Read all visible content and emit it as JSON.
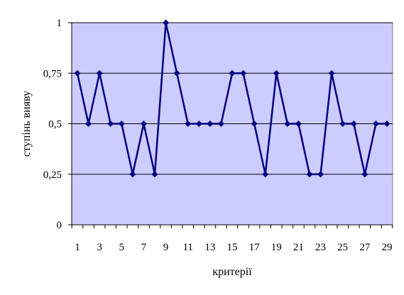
{
  "chart_data": {
    "type": "line",
    "title": "",
    "xlabel": "критерії",
    "ylabel": "ступінь вияву",
    "x": [
      1,
      2,
      3,
      4,
      5,
      6,
      7,
      8,
      9,
      10,
      11,
      12,
      13,
      14,
      15,
      16,
      17,
      18,
      19,
      20,
      21,
      22,
      23,
      24,
      25,
      26,
      27,
      28,
      29
    ],
    "x_tick_labels": [
      "1",
      "3",
      "5",
      "7",
      "9",
      "11",
      "13",
      "15",
      "17",
      "19",
      "21",
      "23",
      "25",
      "27",
      "29"
    ],
    "y_tick_values": [
      0,
      0.25,
      0.5,
      0.75,
      1
    ],
    "y_tick_labels": [
      "0",
      "0,25",
      "0,5",
      "0,75",
      "1"
    ],
    "ylim": [
      0,
      1
    ],
    "xlim": [
      1,
      29
    ],
    "series": [
      {
        "values": [
          0.75,
          0.5,
          0.75,
          0.5,
          0.5,
          0.25,
          0.5,
          0.25,
          1,
          0.75,
          0.5,
          0.5,
          0.5,
          0.5,
          0.75,
          0.75,
          0.5,
          0.25,
          0.75,
          0.5,
          0.5,
          0.25,
          0.25,
          0.75,
          0.5,
          0.5,
          0.25,
          0.5,
          0.5
        ]
      }
    ],
    "grid": true,
    "legend": "none",
    "colors": {
      "plot_background": "#ccccff",
      "line": "#000080",
      "grid": "#000000",
      "axis": "#000000"
    }
  }
}
